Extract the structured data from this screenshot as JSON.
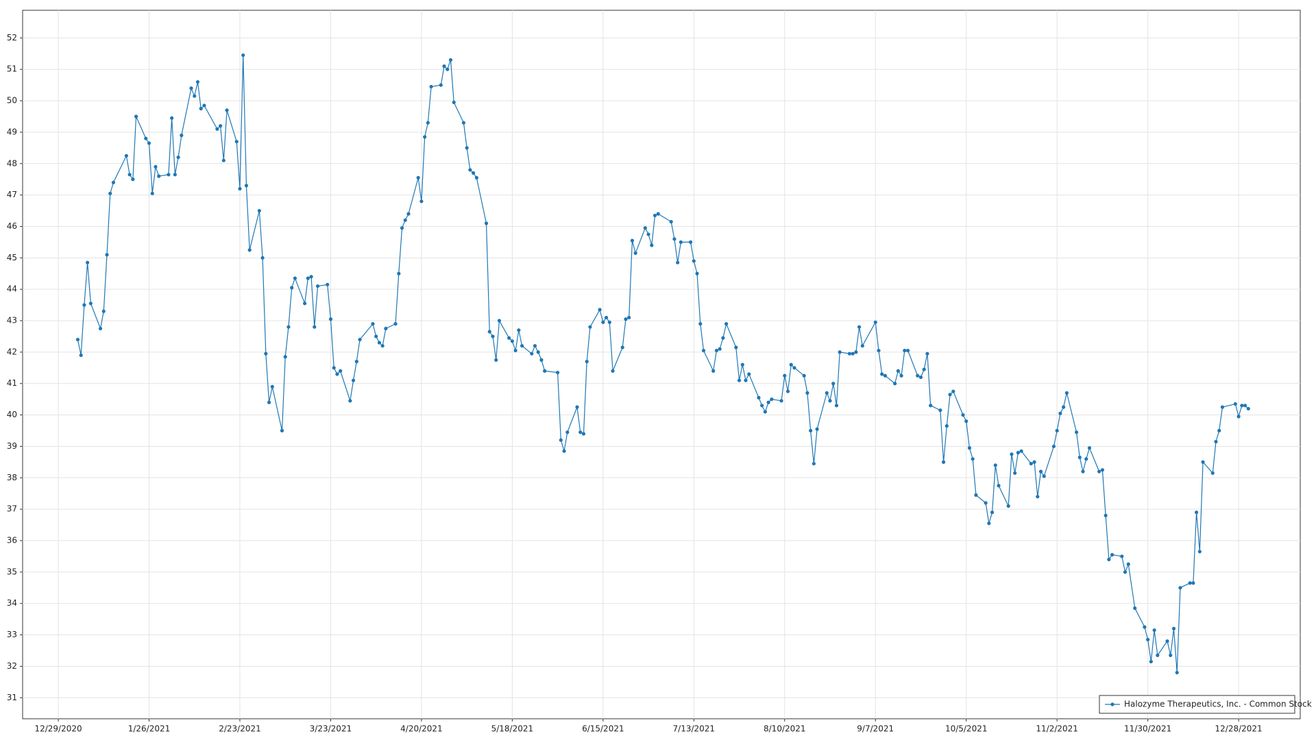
{
  "chart_data": {
    "type": "line",
    "x": [
      "1/4/2021",
      "1/5/2021",
      "1/6/2021",
      "1/7/2021",
      "1/8/2021",
      "1/11/2021",
      "1/12/2021",
      "1/13/2021",
      "1/14/2021",
      "1/15/2021",
      "1/19/2021",
      "1/20/2021",
      "1/21/2021",
      "1/22/2021",
      "1/25/2021",
      "1/26/2021",
      "1/27/2021",
      "1/28/2021",
      "1/29/2021",
      "2/1/2021",
      "2/2/2021",
      "2/3/2021",
      "2/4/2021",
      "2/5/2021",
      "2/8/2021",
      "2/9/2021",
      "2/10/2021",
      "2/11/2021",
      "2/12/2021",
      "2/16/2021",
      "2/17/2021",
      "2/18/2021",
      "2/19/2021",
      "2/22/2021",
      "2/23/2021",
      "2/24/2021",
      "2/25/2021",
      "2/26/2021",
      "3/1/2021",
      "3/2/2021",
      "3/3/2021",
      "3/4/2021",
      "3/5/2021",
      "3/8/2021",
      "3/9/2021",
      "3/10/2021",
      "3/11/2021",
      "3/12/2021",
      "3/15/2021",
      "3/16/2021",
      "3/17/2021",
      "3/18/2021",
      "3/19/2021",
      "3/22/2021",
      "3/23/2021",
      "3/24/2021",
      "3/25/2021",
      "3/26/2021",
      "3/29/2021",
      "3/30/2021",
      "3/31/2021",
      "4/1/2021",
      "4/5/2021",
      "4/6/2021",
      "4/7/2021",
      "4/8/2021",
      "4/9/2021",
      "4/12/2021",
      "4/13/2021",
      "4/14/2021",
      "4/15/2021",
      "4/16/2021",
      "4/19/2021",
      "4/20/2021",
      "4/21/2021",
      "4/22/2021",
      "4/23/2021",
      "4/26/2021",
      "4/27/2021",
      "4/28/2021",
      "4/29/2021",
      "4/30/2021",
      "5/3/2021",
      "5/4/2021",
      "5/5/2021",
      "5/6/2021",
      "5/7/2021",
      "5/10/2021",
      "5/11/2021",
      "5/12/2021",
      "5/13/2021",
      "5/14/2021",
      "5/17/2021",
      "5/18/2021",
      "5/19/2021",
      "5/20/2021",
      "5/21/2021",
      "5/24/2021",
      "5/25/2021",
      "5/26/2021",
      "5/27/2021",
      "5/28/2021",
      "6/1/2021",
      "6/2/2021",
      "6/3/2021",
      "6/4/2021",
      "6/7/2021",
      "6/8/2021",
      "6/9/2021",
      "6/10/2021",
      "6/11/2021",
      "6/14/2021",
      "6/15/2021",
      "6/16/2021",
      "6/17/2021",
      "6/18/2021",
      "6/21/2021",
      "6/22/2021",
      "6/23/2021",
      "6/24/2021",
      "6/25/2021",
      "6/28/2021",
      "6/29/2021",
      "6/30/2021",
      "7/1/2021",
      "7/2/2021",
      "7/6/2021",
      "7/7/2021",
      "7/8/2021",
      "7/9/2021",
      "7/12/2021",
      "7/13/2021",
      "7/14/2021",
      "7/15/2021",
      "7/16/2021",
      "7/19/2021",
      "7/20/2021",
      "7/21/2021",
      "7/22/2021",
      "7/23/2021",
      "7/26/2021",
      "7/27/2021",
      "7/28/2021",
      "7/29/2021",
      "7/30/2021",
      "8/2/2021",
      "8/3/2021",
      "8/4/2021",
      "8/5/2021",
      "8/6/2021",
      "8/9/2021",
      "8/10/2021",
      "8/11/2021",
      "8/12/2021",
      "8/13/2021",
      "8/16/2021",
      "8/17/2021",
      "8/18/2021",
      "8/19/2021",
      "8/20/2021",
      "8/23/2021",
      "8/24/2021",
      "8/25/2021",
      "8/26/2021",
      "8/27/2021",
      "8/30/2021",
      "8/31/2021",
      "9/1/2021",
      "9/2/2021",
      "9/3/2021",
      "9/7/2021",
      "9/8/2021",
      "9/9/2021",
      "9/10/2021",
      "9/13/2021",
      "9/14/2021",
      "9/15/2021",
      "9/16/2021",
      "9/17/2021",
      "9/20/2021",
      "9/21/2021",
      "9/22/2021",
      "9/23/2021",
      "9/24/2021",
      "9/27/2021",
      "9/28/2021",
      "9/29/2021",
      "9/30/2021",
      "10/1/2021",
      "10/4/2021",
      "10/5/2021",
      "10/6/2021",
      "10/7/2021",
      "10/8/2021",
      "10/11/2021",
      "10/12/2021",
      "10/13/2021",
      "10/14/2021",
      "10/15/2021",
      "10/18/2021",
      "10/19/2021",
      "10/20/2021",
      "10/21/2021",
      "10/22/2021",
      "10/25/2021",
      "10/26/2021",
      "10/27/2021",
      "10/28/2021",
      "10/29/2021",
      "11/1/2021",
      "11/2/2021",
      "11/3/2021",
      "11/4/2021",
      "11/5/2021",
      "11/8/2021",
      "11/9/2021",
      "11/10/2021",
      "11/11/2021",
      "11/12/2021",
      "11/15/2021",
      "11/16/2021",
      "11/17/2021",
      "11/18/2021",
      "11/19/2021",
      "11/22/2021",
      "11/23/2021",
      "11/24/2021",
      "11/26/2021",
      "11/29/2021",
      "11/30/2021",
      "12/1/2021",
      "12/2/2021",
      "12/3/2021",
      "12/6/2021",
      "12/7/2021",
      "12/8/2021",
      "12/9/2021",
      "12/10/2021",
      "12/13/2021",
      "12/14/2021",
      "12/15/2021",
      "12/16/2021",
      "12/17/2021",
      "12/20/2021",
      "12/21/2021",
      "12/22/2021",
      "12/23/2021",
      "12/27/2021",
      "12/28/2021",
      "12/29/2021",
      "12/30/2021",
      "12/31/2021"
    ],
    "series": [
      {
        "name": "Halozyme Therapeutics, Inc. - Common Stock",
        "color": "#1f77b4",
        "values": [
          42.4,
          41.9,
          43.5,
          44.85,
          43.55,
          42.75,
          43.3,
          45.1,
          47.05,
          47.4,
          48.25,
          47.65,
          47.5,
          49.5,
          48.8,
          48.65,
          47.05,
          47.9,
          47.6,
          47.65,
          49.45,
          47.65,
          48.2,
          48.9,
          50.4,
          50.15,
          50.6,
          49.75,
          49.85,
          49.1,
          49.2,
          48.1,
          49.7,
          48.7,
          47.2,
          51.45,
          47.3,
          45.25,
          46.5,
          45.0,
          41.95,
          40.4,
          40.9,
          39.5,
          41.85,
          42.8,
          44.05,
          44.35,
          43.55,
          44.35,
          44.4,
          42.8,
          44.1,
          44.15,
          43.05,
          41.5,
          41.3,
          41.4,
          40.45,
          41.1,
          41.7,
          42.4,
          42.9,
          42.5,
          42.3,
          42.2,
          42.75,
          42.9,
          44.5,
          45.95,
          46.2,
          46.4,
          47.55,
          46.8,
          48.85,
          49.3,
          50.45,
          50.5,
          51.1,
          51.0,
          51.3,
          49.95,
          49.3,
          48.5,
          47.8,
          47.7,
          47.55,
          46.1,
          42.65,
          42.5,
          41.75,
          43.0,
          42.45,
          42.35,
          42.05,
          42.7,
          42.2,
          41.95,
          42.2,
          42.0,
          41.75,
          41.4,
          41.35,
          39.2,
          38.85,
          39.45,
          40.25,
          39.45,
          39.4,
          41.7,
          42.8,
          43.35,
          42.95,
          43.1,
          42.95,
          41.4,
          42.15,
          43.05,
          43.1,
          45.55,
          45.15,
          45.95,
          45.75,
          45.4,
          46.35,
          46.4,
          46.15,
          45.6,
          44.85,
          45.5,
          45.5,
          44.9,
          44.5,
          42.9,
          42.05,
          41.4,
          42.05,
          42.1,
          42.45,
          42.9,
          42.15,
          41.1,
          41.6,
          41.1,
          41.3,
          40.55,
          40.3,
          40.1,
          40.4,
          40.5,
          40.45,
          41.25,
          40.75,
          41.6,
          41.5,
          41.25,
          40.7,
          39.5,
          38.45,
          39.55,
          40.7,
          40.45,
          41.0,
          40.3,
          42.0,
          41.95,
          41.95,
          42.0,
          42.8,
          42.2,
          42.95,
          42.05,
          41.3,
          41.25,
          41.0,
          41.4,
          41.25,
          42.05,
          42.05,
          41.25,
          41.2,
          41.45,
          41.95,
          40.3,
          40.15,
          38.5,
          39.65,
          40.65,
          40.75,
          40.0,
          39.8,
          38.95,
          38.6,
          37.45,
          37.2,
          36.55,
          36.9,
          38.4,
          37.75,
          37.1,
          38.75,
          38.15,
          38.8,
          38.85,
          38.45,
          38.5,
          37.4,
          38.2,
          38.05,
          39.0,
          39.5,
          40.05,
          40.25,
          40.7,
          39.45,
          38.65,
          38.2,
          38.6,
          38.95,
          38.2,
          38.25,
          36.8,
          35.4,
          35.55,
          35.5,
          35.0,
          35.25,
          33.85,
          33.25,
          32.85,
          32.15,
          33.15,
          32.35,
          32.8,
          32.35,
          33.2,
          31.8,
          34.5,
          34.65,
          34.65,
          36.9,
          35.65,
          38.5,
          38.15,
          39.15,
          39.5,
          40.25,
          40.35,
          39.95,
          40.3,
          40.3,
          40.2
        ]
      }
    ],
    "xlim": [
      "12/18/2020",
      "1/16/2022"
    ],
    "xticks": [
      "12/29/2020",
      "1/26/2021",
      "2/23/2021",
      "3/23/2021",
      "4/20/2021",
      "5/18/2021",
      "6/15/2021",
      "7/13/2021",
      "8/10/2021",
      "9/7/2021",
      "10/5/2021",
      "11/2/2021",
      "11/30/2021",
      "12/28/2021"
    ],
    "ylim": [
      30.33,
      52.88
    ],
    "yticks": [
      31,
      32,
      33,
      34,
      35,
      36,
      37,
      38,
      39,
      40,
      41,
      42,
      43,
      44,
      45,
      46,
      47,
      48,
      49,
      50,
      51,
      52
    ],
    "grid": true,
    "markers": true,
    "legend": "lower right"
  }
}
